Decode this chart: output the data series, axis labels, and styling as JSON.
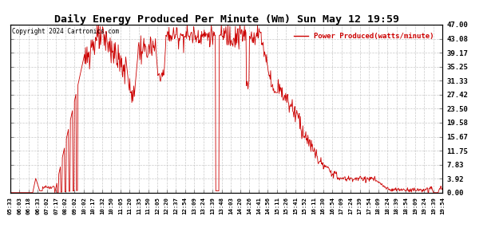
{
  "title": "Daily Energy Produced Per Minute (Wm) Sun May 12 19:59",
  "copyright": "Copyright 2024 Cartronics.com",
  "legend_label": "Power Produced(watts/minute)",
  "ylabel_right_ticks": [
    0.0,
    3.92,
    7.83,
    11.75,
    15.67,
    19.58,
    23.5,
    27.42,
    31.33,
    35.25,
    39.17,
    43.08,
    47.0
  ],
  "ymax": 47.0,
  "ymin": 0.0,
  "background_color": "#ffffff",
  "plot_bg_color": "#ffffff",
  "grid_color": "#bbbbbb",
  "line_color": "#cc0000",
  "title_color": "#000000",
  "copyright_color": "#000000",
  "legend_color": "#cc0000",
  "x_tick_labels": [
    "05:33",
    "06:03",
    "06:18",
    "06:33",
    "07:02",
    "07:17",
    "08:02",
    "09:02",
    "10:02",
    "10:17",
    "10:32",
    "10:50",
    "11:05",
    "11:20",
    "11:35",
    "11:50",
    "12:05",
    "12:20",
    "12:37",
    "12:54",
    "13:09",
    "13:24",
    "13:39",
    "13:48",
    "14:03",
    "14:20",
    "14:26",
    "14:41",
    "14:56",
    "15:11",
    "15:26",
    "15:41",
    "15:52",
    "16:11",
    "16:30",
    "16:54",
    "17:09",
    "17:24",
    "17:39",
    "17:54",
    "18:09",
    "18:24",
    "18:39",
    "18:54",
    "19:09",
    "19:24",
    "19:39",
    "19:54"
  ]
}
